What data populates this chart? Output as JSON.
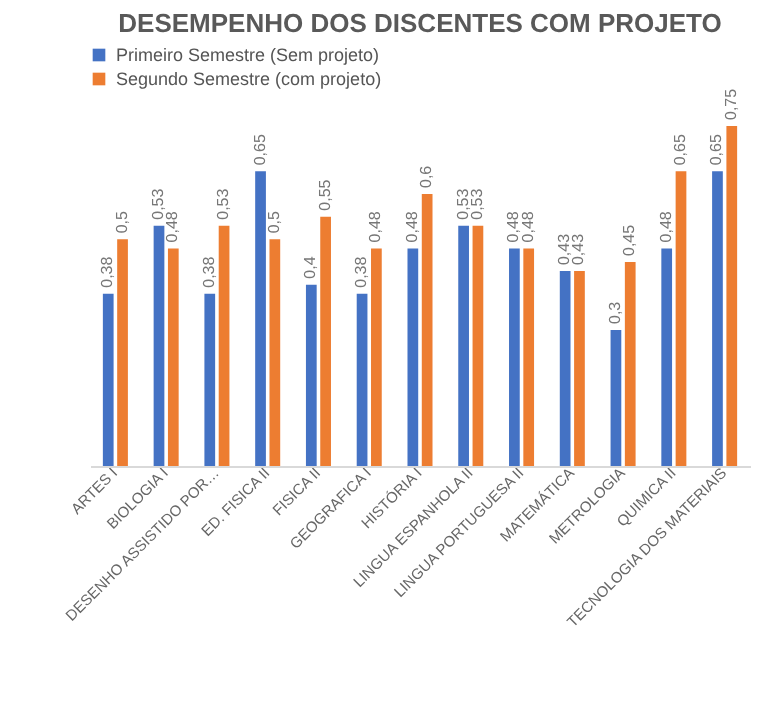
{
  "chart_data": {
    "type": "bar",
    "title": "DESEMPENHO DOS DISCENTES COM PROJETO",
    "categories": [
      "ARTES I",
      "BIOLOGIA I",
      "DESENHO ASSISTIDO POR…",
      "ED. FISICA II",
      "FISICA II",
      "GEOGRAFICA I",
      "HISTÓRIA I",
      "LINGUA ESPANHOLA II",
      "LINGUA PORTUGUESA II",
      "MATEMÁTICA",
      "METROLOGIA",
      "QUIMICA II",
      "TECNOLOGIA DOS MATERIAIS"
    ],
    "series": [
      {
        "name": "Primeiro Semestre (Sem projeto)",
        "color": "#4472c4",
        "values": [
          0.38,
          0.53,
          0.38,
          0.65,
          0.4,
          0.38,
          0.48,
          0.53,
          0.48,
          0.43,
          0.3,
          0.48,
          0.65
        ],
        "value_labels": [
          "0,38",
          "0,53",
          "0,38",
          "0,65",
          "0,4",
          "0,38",
          "0,48",
          "0,53",
          "0,48",
          "0,43",
          "0,3",
          "0,48",
          "0,65"
        ]
      },
      {
        "name": "Segundo Semestre (com projeto)",
        "color": "#ed7d31",
        "values": [
          0.5,
          0.48,
          0.53,
          0.5,
          0.55,
          0.48,
          0.6,
          0.53,
          0.48,
          0.43,
          0.45,
          0.65,
          0.75
        ],
        "value_labels": [
          "0,5",
          "0,48",
          "0,53",
          "0,5",
          "0,55",
          "0,48",
          "0,6",
          "0,53",
          "0,48",
          "0,43",
          "0,45",
          "0,65",
          "0,75"
        ]
      }
    ],
    "legend": "top"
  }
}
